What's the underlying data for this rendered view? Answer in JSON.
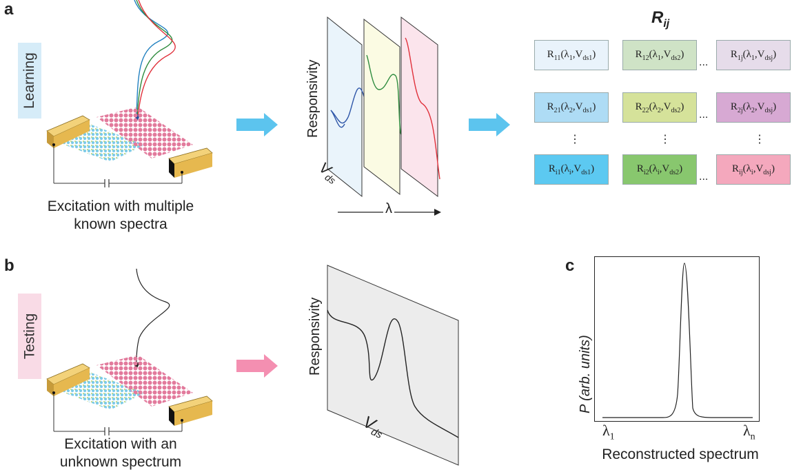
{
  "panels": {
    "a": {
      "letter": "a",
      "side_label": "Learning",
      "caption_line1": "Excitation with multiple",
      "caption_line2": "known spectra"
    },
    "b": {
      "letter": "b",
      "side_label": "Testing",
      "caption_line1": "Excitation with an",
      "caption_line2": "unknown spectrum"
    },
    "c": {
      "letter": "c"
    }
  },
  "responsivity_stack": {
    "y_label": "Responsivity",
    "vds_label": "V",
    "vds_sub": "ds",
    "lambda_label": "λ"
  },
  "matrix": {
    "title": "R",
    "title_sub": "ij",
    "rows": [
      {
        "cells": [
          {
            "main": "R",
            "sub": "11",
            "lam_sub": "1",
            "v_sub": "ds1",
            "color": "#e9f3fb"
          },
          {
            "main": "R",
            "sub": "12",
            "lam_sub": "1",
            "v_sub": "ds2",
            "color": "#cfe3c6"
          },
          {
            "main": "R",
            "sub": "1j",
            "lam_sub": "1",
            "v_sub": "dsj",
            "color": "#e6dcea"
          }
        ]
      },
      {
        "cells": [
          {
            "main": "R",
            "sub": "21",
            "lam_sub": "2",
            "v_sub": "ds1",
            "color": "#aedcf5"
          },
          {
            "main": "R",
            "sub": "22",
            "lam_sub": "2",
            "v_sub": "ds2",
            "color": "#d5e29a"
          },
          {
            "main": "R",
            "sub": "2j",
            "lam_sub": "2",
            "v_sub": "dsj",
            "color": "#d7a9d3"
          }
        ]
      },
      {
        "cells": [
          {
            "main": "R",
            "sub": "i1",
            "lam_sub": "i",
            "v_sub": "ds1",
            "color": "#5cc9f1"
          },
          {
            "main": "R",
            "sub": "i2",
            "lam_sub": "i",
            "v_sub": "ds2",
            "color": "#88c76e"
          },
          {
            "main": "R",
            "sub": "ij",
            "lam_sub": "i",
            "v_sub": "dsj",
            "color": "#f4a8bd"
          }
        ]
      }
    ],
    "hdots": "...",
    "vdots": "⋮"
  },
  "testing_plot": {
    "y_label": "Responsivity",
    "vds_label": "V",
    "vds_sub": "ds"
  },
  "spectrum_plot": {
    "y_label": "P (arb. units)",
    "x_label": "Reconstructed spectrum",
    "x_start": "λ",
    "x_start_sub": "1",
    "x_end": "λ",
    "x_end_sub": "n"
  },
  "colors": {
    "arrow_learning": "#5cc4ee",
    "arrow_testing": "#f48fb1",
    "learning_tag": "#d6ecf8",
    "testing_tag": "#f9dbe6",
    "curve_blue": "#2e56a8",
    "curve_green": "#2e8b3e",
    "curve_red": "#e0303a"
  },
  "icons": {
    "device": "2d-heterostructure-device-icon",
    "arrow": "right-arrow-icon"
  }
}
